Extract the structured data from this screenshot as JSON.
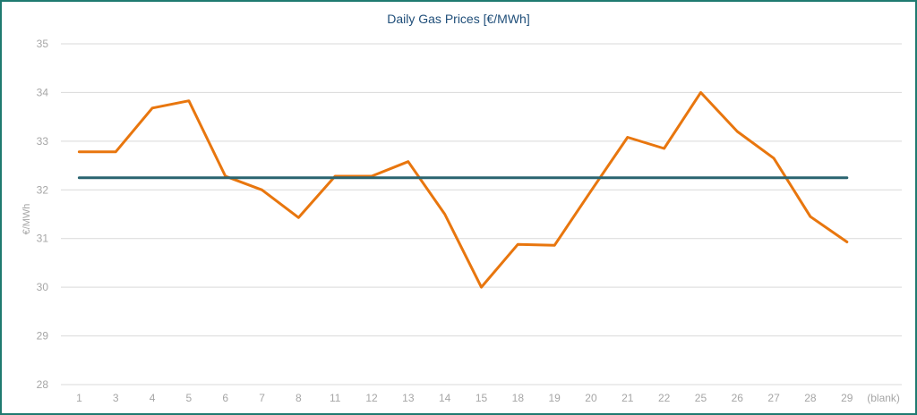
{
  "chart_data": {
    "type": "line",
    "title": "Daily Gas Prices [€/MWh]",
    "ylabel": "€/MWh",
    "xlabel": "",
    "ylim": [
      28,
      35
    ],
    "yticks": [
      "28",
      "29",
      "30",
      "31",
      "32",
      "33",
      "34",
      "35"
    ],
    "grid": true,
    "categories": [
      "1",
      "3",
      "4",
      "5",
      "6",
      "7",
      "8",
      "11",
      "12",
      "13",
      "14",
      "15",
      "18",
      "19",
      "20",
      "21",
      "22",
      "25",
      "26",
      "27",
      "28",
      "29",
      "(blank)"
    ],
    "series": [
      {
        "color": "#e8760e",
        "values": [
          32.78,
          32.78,
          33.68,
          33.83,
          32.28,
          32.0,
          31.43,
          32.28,
          32.28,
          32.58,
          31.5,
          30.0,
          30.88,
          30.86,
          31.98,
          33.08,
          32.85,
          34.0,
          33.2,
          32.65,
          31.45,
          30.93,
          null
        ]
      },
      {
        "color": "#2a6470",
        "values": [
          32.25,
          32.25,
          32.25,
          32.25,
          32.25,
          32.25,
          32.25,
          32.25,
          32.25,
          32.25,
          32.25,
          32.25,
          32.25,
          32.25,
          32.25,
          32.25,
          32.25,
          32.25,
          32.25,
          32.25,
          32.25,
          32.25,
          null
        ]
      }
    ]
  }
}
